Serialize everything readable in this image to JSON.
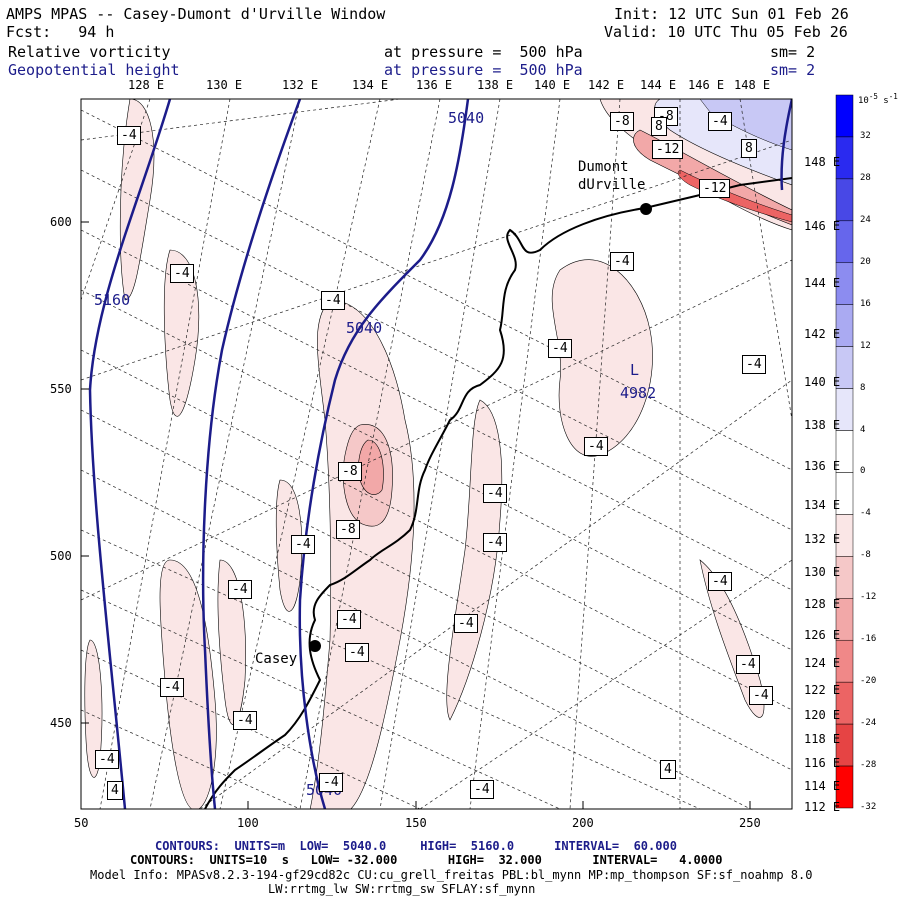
{
  "header": {
    "title": "AMPS MPAS -- Casey-Dumont d'Urville Window",
    "forecast": "Fcst:   94 h",
    "init": "Init: 12 UTC Sun 01 Feb 26",
    "valid": "Valid: 10 UTC Thu 05 Feb 26",
    "field1_name": "Relative vorticity",
    "field1_level": "at pressure =  500 hPa",
    "field1_sm": "sm= 2",
    "field2_name": "Geopotential height",
    "field2_level": "at pressure =  500 hPa",
    "field2_sm": "sm= 2"
  },
  "top_longitudes": [
    "128 E",
    "130 E",
    "132 E",
    "134 E",
    "136 E",
    "138 E",
    "140 E",
    "142 E",
    "144 E",
    "146 E",
    "148 E"
  ],
  "right_latitudes": [
    "148 E",
    "146 E",
    "144 E",
    "142 E",
    "140 E",
    "138 E",
    "136 E",
    "134 E",
    "132 E",
    "130 E",
    "128 E",
    "126 E",
    "124 E",
    "122 E",
    "120 E",
    "118 E",
    "116 E",
    "114 E",
    "112 E"
  ],
  "x_ticks": [
    "50",
    "100",
    "150",
    "200",
    "250"
  ],
  "y_ticks": [
    "600",
    "550",
    "500",
    "450"
  ],
  "stations": [
    {
      "name": "Dumont\ndUrville"
    },
    {
      "name": "Casey"
    }
  ],
  "height_labels": [
    "5040",
    "5160",
    "5040",
    "5040"
  ],
  "low_label": {
    "symbol": "L",
    "value": "4982"
  },
  "vort_labels": [
    "-4",
    "-8",
    "-4",
    "8",
    "8",
    "-12",
    "-12",
    "-8",
    "-4",
    "-4",
    "-4",
    "-4",
    "-4",
    "-8",
    "-8",
    "-4",
    "-4",
    "-4",
    "-4",
    "-4",
    "-4",
    "-4",
    "-4",
    "-4",
    "-4",
    "-4",
    "-4",
    "-4",
    "-4",
    "-4",
    "4",
    "-4",
    "4"
  ],
  "colorbar": {
    "unit": "10",
    "unit_exp": "-5",
    "unit_suffix": " s",
    "unit_suffix_exp": "-1",
    "labels": [
      "32",
      "28",
      "24",
      "20",
      "16",
      "12",
      "8",
      "4",
      "0",
      "-4",
      "-8",
      "-12",
      "-16",
      "-20",
      "-24",
      "-28",
      "-32"
    ],
    "colors": [
      "#0000ff",
      "#2a2af0",
      "#4848e6",
      "#6666ec",
      "#8c8cf0",
      "#aaaaf2",
      "#c8c8f5",
      "#e6e6fa",
      "#ffffff",
      "#ffffff",
      "#fae6e6",
      "#f5c8c8",
      "#f2a8a8",
      "#f08888",
      "#ec6464",
      "#e64444",
      "#ff0000"
    ]
  },
  "footer": {
    "contours1_a": "CONTOURS:  UNITS=m  LOW=  5040.0",
    "contours1_b": "HIGH=  5160.0",
    "contours1_c": "INTERVAL=  60.000",
    "contours2": "CONTOURS:  UNITS=10  s   LOW= -32.000       HIGH=  32.000       INTERVAL=   4.0000",
    "model1": "Model Info: MPASv8.2.3-194-gf29cd82c CU:cu_grell_freitas PBL:bl_mynn MP:mp_thompson SF:sf_noahmp 8.0",
    "model2": "LW:rrtmg_lw SW:rrtmg_sw SFLAY:sf_mynn"
  },
  "colors": {
    "height_contour": "#1c1c8a",
    "coast": "#000000",
    "lowpink": "#fae6e6"
  }
}
